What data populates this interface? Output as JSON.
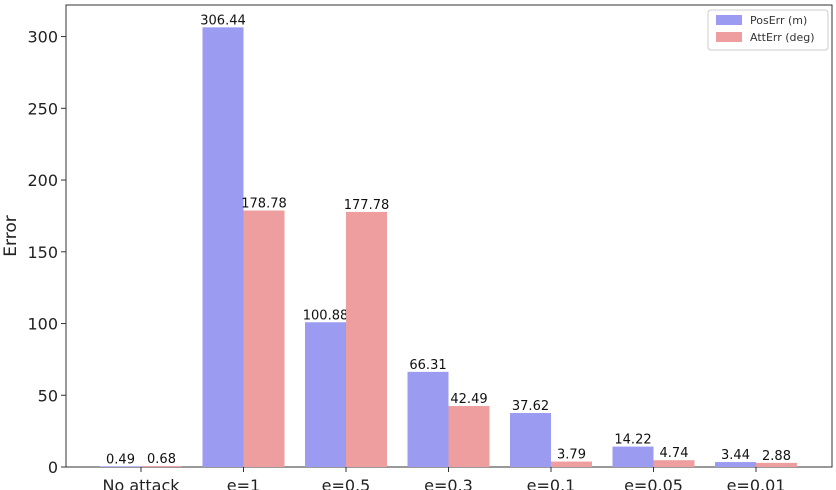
{
  "chart_data": {
    "type": "bar",
    "categories": [
      "No attack",
      "e=1",
      "e=0.5",
      "e=0.3",
      "e=0.1",
      "e=0.05",
      "e=0.01"
    ],
    "series": [
      {
        "name": "PosErr (m)",
        "color": "#9b9bf2",
        "values": [
          0.49,
          306.44,
          100.88,
          66.31,
          37.62,
          14.22,
          3.44
        ]
      },
      {
        "name": "AttErr (deg)",
        "color": "#ee9e9e",
        "values": [
          0.68,
          178.78,
          177.78,
          42.49,
          3.79,
          4.74,
          2.88
        ]
      }
    ],
    "data_labels": [
      [
        "0.49",
        "306.44",
        "100.88",
        "66.31",
        "37.62",
        "14.22",
        "3.44"
      ],
      [
        "0.68",
        "178.78",
        "177.78",
        "42.49",
        "3.79",
        "4.74",
        "2.88"
      ]
    ],
    "ylabel": "Error",
    "xlabel": "",
    "ylim": [
      0,
      322
    ],
    "yticks": [
      0,
      50,
      100,
      150,
      200,
      250,
      300
    ],
    "legend_position": "top-right",
    "grid": false
  }
}
